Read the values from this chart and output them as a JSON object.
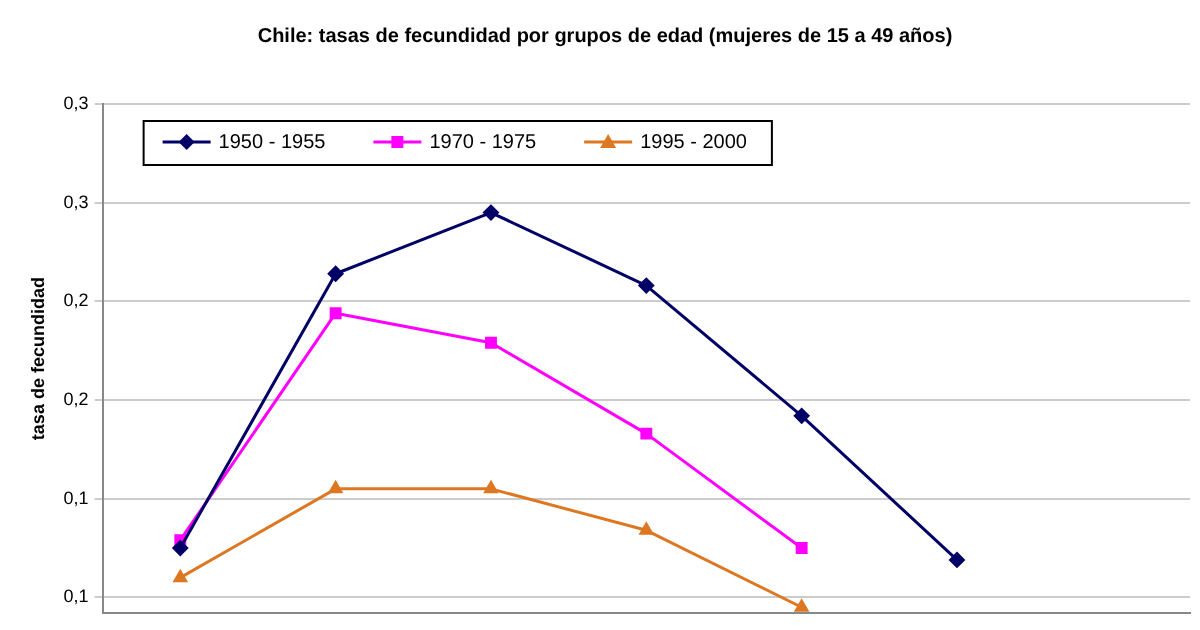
{
  "chart_data": {
    "type": "line",
    "title": "Chile: tasas de fecundidad por grupos de edad (mujeres de 15 a 49 años)",
    "ylabel": "tasa de fecundidad",
    "categories": [
      null,
      null,
      null,
      null,
      null,
      null,
      null
    ],
    "series": [
      {
        "name": "1950 - 1955",
        "color": "#000066",
        "marker": "diamond",
        "values": [
          0.075,
          0.214,
          0.245,
          0.208,
          0.142,
          0.069,
          null
        ]
      },
      {
        "name": "1970 - 1975",
        "color": "#ff00ff",
        "marker": "square",
        "values": [
          0.079,
          0.194,
          0.179,
          0.133,
          0.075,
          null,
          null
        ]
      },
      {
        "name": "1995 - 2000",
        "color": "#dd7722",
        "marker": "triangle",
        "values": [
          0.06,
          0.105,
          0.105,
          0.084,
          0.045,
          null,
          null
        ]
      }
    ],
    "ylim": [
      0.042,
      0.3
    ],
    "yticks": [
      {
        "value": 0.3,
        "label": "0,3"
      },
      {
        "value": 0.25,
        "label": "0,3"
      },
      {
        "value": 0.2,
        "label": "0,2"
      },
      {
        "value": 0.15,
        "label": "0,2"
      },
      {
        "value": 0.1,
        "label": "0,1"
      },
      {
        "value": 0.05,
        "label": "0,1"
      }
    ],
    "grid": "y",
    "legend": "top left",
    "tick_labels": "y"
  }
}
